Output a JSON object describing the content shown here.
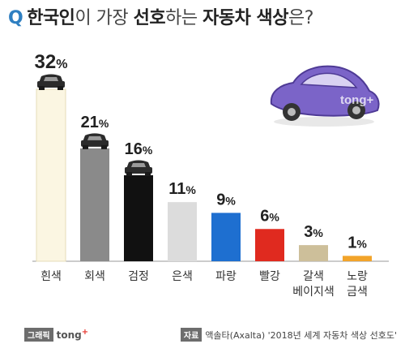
{
  "title": {
    "q": "Q",
    "parts": [
      {
        "t": "한국인",
        "w": "b"
      },
      {
        "t": "이 가장 ",
        "w": "n"
      },
      {
        "t": "선호",
        "w": "b"
      },
      {
        "t": "하는 ",
        "w": "n"
      },
      {
        "t": "자동차 색상",
        "w": "b"
      },
      {
        "t": "은?",
        "w": "n"
      }
    ]
  },
  "chart_data": {
    "type": "bar",
    "categories": [
      "흰색",
      "회색",
      "검정",
      "은색",
      "파랑",
      "빨강",
      "갈색\n베이지색",
      "노랑\n금색"
    ],
    "values": [
      32,
      21,
      16,
      11,
      9,
      6,
      3,
      1
    ],
    "value_labels": [
      "32%",
      "21%",
      "16%",
      "11%",
      "9%",
      "6%",
      "3%",
      "1%"
    ],
    "colors": [
      "#fbf6e2",
      "#8a8a8a",
      "#111111",
      "#dcdcdc",
      "#1e6fd0",
      "#e02a1f",
      "#cdbf9a",
      "#f2a42a"
    ],
    "ylim": [
      0,
      32
    ],
    "car_icon_on": [
      0,
      1,
      2
    ]
  },
  "watermark": "tong+",
  "footer": {
    "credit_tag": "그래픽",
    "brand": "tong",
    "brand_plus": "+",
    "source_tag": "자료",
    "source_text": "액솔타(Axalta) '2018년 세계 자동차 색상 선호도'"
  }
}
